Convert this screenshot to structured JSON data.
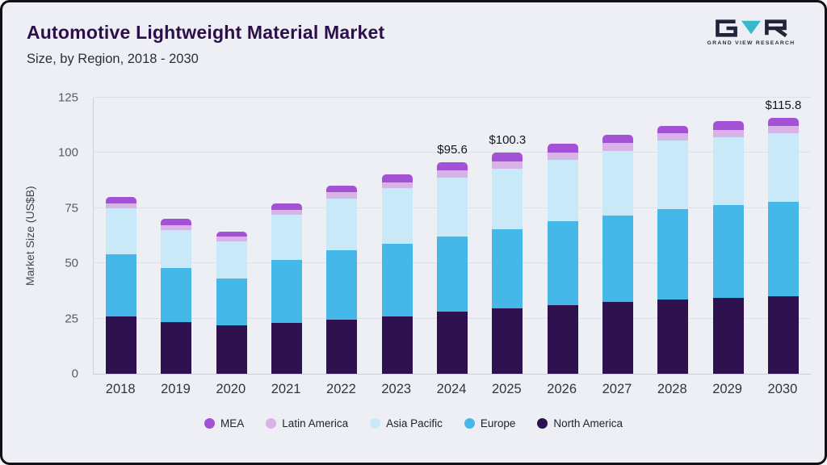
{
  "header": {
    "title": "Automotive Lightweight Material Market",
    "subtitle": "Size, by Region, 2018 - 2030",
    "logo_text": "GRAND VIEW RESEARCH"
  },
  "chart_data": {
    "type": "bar",
    "stacked": true,
    "title": "Automotive Lightweight Material Market Size, by Region, 2018 - 2030",
    "xlabel": "",
    "ylabel": "Market Size (US$B)",
    "ylim": [
      0,
      125
    ],
    "yticks": [
      0,
      25,
      50,
      75,
      100,
      125
    ],
    "grid": true,
    "legend_position": "bottom",
    "categories": [
      "2018",
      "2019",
      "2020",
      "2021",
      "2022",
      "2023",
      "2024",
      "2025",
      "2026",
      "2027",
      "2028",
      "2029",
      "2030"
    ],
    "series": [
      {
        "name": "North America",
        "color": "#2e1250",
        "values": [
          26,
          23.5,
          22,
          23,
          24.5,
          26,
          28,
          29.5,
          31,
          32.5,
          33.5,
          34.5,
          35
        ]
      },
      {
        "name": "Europe",
        "color": "#45b8e9",
        "values": [
          28,
          24.5,
          21,
          28.5,
          31.5,
          33,
          34,
          36,
          38,
          39,
          41,
          42,
          43
        ]
      },
      {
        "name": "Asia Pacific",
        "color": "#c9e8f8",
        "values": [
          21,
          17,
          17,
          20.5,
          23.5,
          25,
          27,
          27.5,
          28,
          29.5,
          31,
          30.5,
          30.8
        ]
      },
      {
        "name": "Latin America",
        "color": "#d9b3e8",
        "values": [
          2.2,
          2.2,
          2,
          2.2,
          2.6,
          2.7,
          3,
          3.3,
          3.3,
          3.4,
          3.4,
          3.5,
          3.5
        ]
      },
      {
        "name": "MEA",
        "color": "#a352d6",
        "values": [
          3,
          3,
          2.5,
          3,
          3.2,
          3.5,
          3.6,
          4,
          3.9,
          3.9,
          3.5,
          3.8,
          3.5
        ]
      }
    ],
    "annotations": [
      {
        "category": "2024",
        "text": "$95.6"
      },
      {
        "category": "2025",
        "text": "$100.3"
      },
      {
        "category": "2030",
        "text": "$115.8"
      }
    ],
    "legend": [
      "MEA",
      "Latin America",
      "Asia Pacific",
      "Europe",
      "North America"
    ]
  }
}
